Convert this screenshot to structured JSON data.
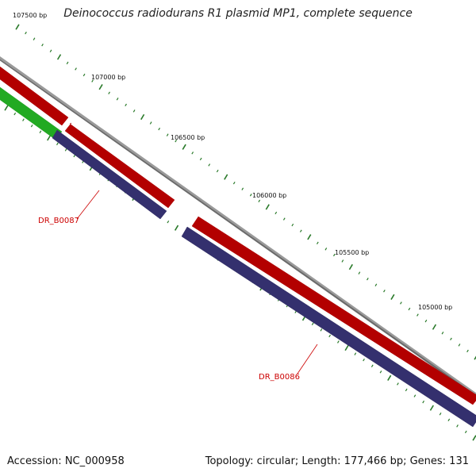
{
  "header": {
    "title": "Deinococcus radiodurans R1 plasmid MP1, complete sequence"
  },
  "footer": {
    "accession": "Accession: NC_000958",
    "summary": "Topology: circular; Length: 177,466 bp; Genes: 131"
  },
  "ruler": {
    "tick_labels": [
      "107500 bp",
      "107000 bp",
      "106500 bp",
      "106000 bp",
      "105500 bp",
      "105000 bp"
    ]
  },
  "genes": [
    {
      "label": "DR_B0087"
    },
    {
      "label": "DR_B0086"
    }
  ],
  "colors": {
    "backbone": "#8c8c8c",
    "cds_forward": "#ee0000",
    "cds_reverse": "#4a4490",
    "other_feature": "#33cc33",
    "tick": "#2a7a2a",
    "gene_label": "#cc0000"
  }
}
